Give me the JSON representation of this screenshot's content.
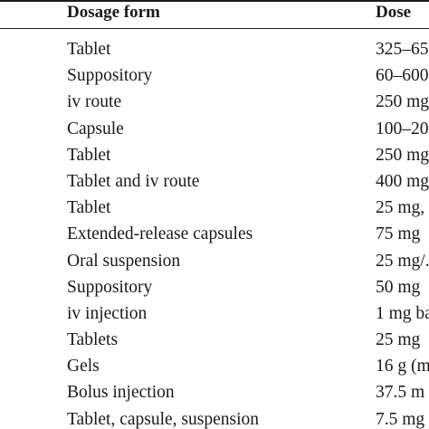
{
  "table": {
    "headers": {
      "dosage_form": "Dosage form",
      "dose": "Dose"
    },
    "rows": [
      {
        "dosage_form": "Tablet",
        "dose": "325–65"
      },
      {
        "dosage_form": "Suppository",
        "dose": "60–600"
      },
      {
        "dosage_form": "iv route",
        "dose": "250 mg"
      },
      {
        "dosage_form": "Capsule",
        "dose": "100–20"
      },
      {
        "dosage_form": "Tablet",
        "dose": "250 mg"
      },
      {
        "dosage_form": "Tablet and iv route",
        "dose": "400 mg"
      },
      {
        "dosage_form": "Tablet",
        "dose": "25 mg,"
      },
      {
        "dosage_form": "Extended-release capsules",
        "dose": "75 mg"
      },
      {
        "dosage_form": "Oral suspension",
        "dose": "25 mg/."
      },
      {
        "dosage_form": "Suppository",
        "dose": "50 mg"
      },
      {
        "dosage_form": "iv injection",
        "dose": "1 mg ba"
      },
      {
        "dosage_form": "Tablets",
        "dose": "25 mg"
      },
      {
        "dosage_form": "Gels",
        "dose": "16 g (m"
      },
      {
        "dosage_form": "Bolus injection",
        "dose": "37.5 m"
      },
      {
        "dosage_form": "Tablet, capsule, suspension",
        "dose": "7.5 mg"
      }
    ]
  }
}
